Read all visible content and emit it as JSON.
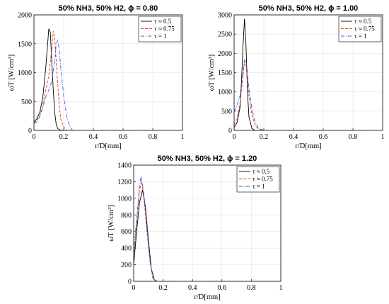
{
  "chart_data": [
    {
      "type": "line",
      "title": "50% NH3, 50% H2, ϕ = 0.80",
      "xlabel": "r/D[mm]",
      "ylabel": "ω̇T [W/cm³]",
      "xlim": [
        0,
        1
      ],
      "ylim": [
        0,
        2000
      ],
      "xticks": [
        "0",
        "0.2",
        "0.4",
        "0.6",
        "0.8",
        "1"
      ],
      "yticks": [
        "0",
        "500",
        "1000",
        "1500",
        "2000"
      ],
      "grid": true,
      "legend_position": "top-right",
      "series": [
        {
          "name": "τ ≈ 0.5",
          "color": "#000000",
          "dash": "solid",
          "x": [
            0,
            0.02,
            0.04,
            0.06,
            0.08,
            0.1,
            0.11,
            0.12,
            0.13,
            0.14,
            0.15,
            0.16,
            0.18,
            0.2,
            1.0
          ],
          "y": [
            150,
            200,
            320,
            580,
            1100,
            1760,
            1700,
            1200,
            700,
            300,
            100,
            30,
            5,
            0,
            0
          ]
        },
        {
          "name": "τ ≈ 0.75",
          "color": "#d9411e",
          "dash": "4,2",
          "x": [
            0,
            0.02,
            0.04,
            0.06,
            0.08,
            0.1,
            0.12,
            0.13,
            0.14,
            0.15,
            0.16,
            0.17,
            0.18,
            0.2,
            0.22,
            1.0
          ],
          "y": [
            130,
            170,
            260,
            450,
            700,
            950,
            1400,
            1720,
            1600,
            1200,
            800,
            450,
            200,
            60,
            0,
            0
          ]
        },
        {
          "name": "τ = 1",
          "color": "#3a56e8",
          "dash": "5,2,1,2",
          "x": [
            0,
            0.02,
            0.04,
            0.06,
            0.08,
            0.1,
            0.12,
            0.14,
            0.15,
            0.16,
            0.17,
            0.18,
            0.2,
            0.22,
            0.24,
            0.26,
            1.0
          ],
          "y": [
            120,
            150,
            240,
            400,
            580,
            700,
            850,
            1200,
            1500,
            1560,
            1400,
            1100,
            600,
            250,
            80,
            0,
            0
          ]
        }
      ]
    },
    {
      "type": "line",
      "title": "50% NH3, 50% H2, ϕ = 1.00",
      "xlabel": "r/D[mm]",
      "ylabel": "ω̇T [W/cm³]",
      "xlim": [
        0,
        1
      ],
      "ylim": [
        0,
        3000
      ],
      "xticks": [
        "0",
        "0.2",
        "0.4",
        "0.6",
        "0.8",
        "1"
      ],
      "yticks": [
        "0",
        "500",
        "1000",
        "1500",
        "2000",
        "2500",
        "3000"
      ],
      "grid": true,
      "legend_position": "top-right",
      "series": [
        {
          "name": "τ ≈ 0.5",
          "color": "#000000",
          "dash": "solid",
          "x": [
            0,
            0.02,
            0.04,
            0.05,
            0.06,
            0.07,
            0.08,
            0.09,
            0.1,
            0.12,
            0.14,
            1.0
          ],
          "y": [
            80,
            200,
            600,
            1300,
            2200,
            2900,
            2200,
            1000,
            350,
            50,
            0,
            0
          ]
        },
        {
          "name": "τ ≈ 0.75",
          "color": "#d9411e",
          "dash": "4,2",
          "x": [
            0,
            0.02,
            0.04,
            0.06,
            0.07,
            0.08,
            0.09,
            0.1,
            0.12,
            0.14,
            0.16,
            0.2,
            1.0
          ],
          "y": [
            150,
            300,
            700,
            1400,
            1800,
            1700,
            1300,
            900,
            400,
            150,
            50,
            0,
            0
          ]
        },
        {
          "name": "τ = 1",
          "color": "#3a56e8",
          "dash": "5,2,1,2",
          "x": [
            0,
            0.02,
            0.04,
            0.06,
            0.07,
            0.08,
            0.09,
            0.1,
            0.12,
            0.14,
            0.16,
            0.2,
            1.0
          ],
          "y": [
            500,
            650,
            900,
            1500,
            1850,
            1800,
            1500,
            1100,
            550,
            250,
            80,
            0,
            0
          ]
        }
      ]
    },
    {
      "type": "line",
      "title": "50% NH3, 50% H2, ϕ = 1.20",
      "xlabel": "r/D[mm]",
      "ylabel": "ω̇T [W/cm³]",
      "xlim": [
        0,
        1
      ],
      "ylim": [
        0,
        1400
      ],
      "xticks": [
        "0",
        "0.2",
        "0.4",
        "0.6",
        "0.8",
        "1"
      ],
      "yticks": [
        "0",
        "200",
        "400",
        "600",
        "800",
        "1000",
        "1200",
        "1400"
      ],
      "grid": true,
      "legend_position": "top-right",
      "series": [
        {
          "name": "τ ≈ 0.5",
          "color": "#000000",
          "dash": "solid",
          "x": [
            0,
            0.02,
            0.04,
            0.06,
            0.08,
            0.1,
            0.12,
            0.14,
            0.16,
            1.0
          ],
          "y": [
            200,
            600,
            950,
            1100,
            900,
            500,
            150,
            20,
            0,
            0
          ]
        },
        {
          "name": "τ ≈ 0.75",
          "color": "#d9411e",
          "dash": "4,2",
          "x": [
            0,
            0.02,
            0.04,
            0.055,
            0.07,
            0.09,
            0.11,
            0.13,
            0.15,
            1.0
          ],
          "y": [
            300,
            700,
            1100,
            1200,
            1000,
            600,
            250,
            50,
            0,
            0
          ]
        },
        {
          "name": "τ = 1",
          "color": "#3a56e8",
          "dash": "5,2,1,2",
          "x": [
            0,
            0.02,
            0.04,
            0.05,
            0.07,
            0.09,
            0.11,
            0.13,
            0.15,
            1.0
          ],
          "y": [
            350,
            750,
            1150,
            1270,
            1050,
            650,
            250,
            40,
            0,
            0
          ]
        }
      ]
    }
  ]
}
